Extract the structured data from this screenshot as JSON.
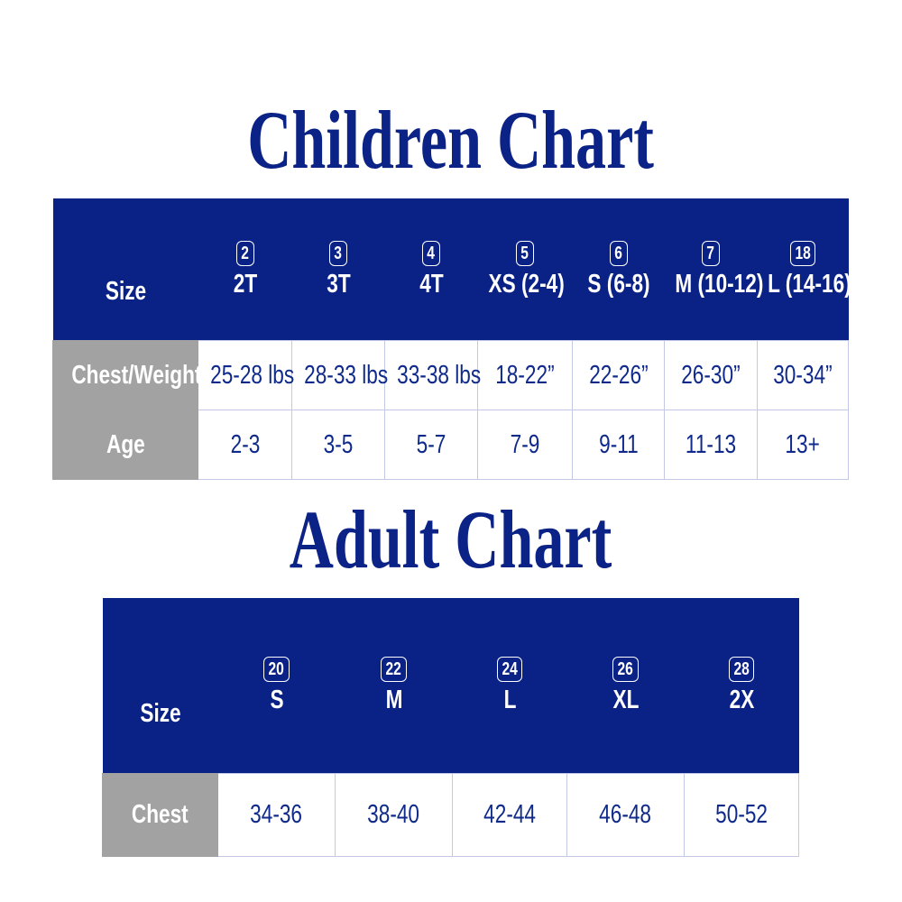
{
  "children": {
    "title": "Children Chart",
    "size_label": "Size",
    "columns": [
      {
        "badge": "2",
        "size": "2T"
      },
      {
        "badge": "3",
        "size": "3T"
      },
      {
        "badge": "4",
        "size": "4T"
      },
      {
        "badge": "5",
        "size": "XS (2-4)"
      },
      {
        "badge": "6",
        "size": "S (6-8)"
      },
      {
        "badge": "7",
        "size": "M (10-12)"
      },
      {
        "badge": "18",
        "size": "L (14-16)"
      }
    ],
    "rows": [
      {
        "label": "Chest/Weight",
        "values": [
          "25-28 lbs",
          "28-33 lbs",
          "33-38 lbs",
          "18-22”",
          "22-26”",
          "26-30”",
          "30-34”"
        ]
      },
      {
        "label": "Age",
        "values": [
          "2-3",
          "3-5",
          "5-7",
          "7-9",
          "9-11",
          "11-13",
          "13+"
        ]
      }
    ]
  },
  "adult": {
    "title": "Adult Chart",
    "size_label": "Size",
    "columns": [
      {
        "badge": "20",
        "size": "S"
      },
      {
        "badge": "22",
        "size": "M"
      },
      {
        "badge": "24",
        "size": "L"
      },
      {
        "badge": "26",
        "size": "XL"
      },
      {
        "badge": "28",
        "size": "2X"
      }
    ],
    "rows": [
      {
        "label": "Chest",
        "values": [
          "34-36",
          "38-40",
          "42-44",
          "46-48",
          "50-52"
        ]
      }
    ]
  },
  "colors": {
    "header": "#0a2185",
    "label_cell": "#a2a2a2",
    "text": "#0f2a8a"
  }
}
